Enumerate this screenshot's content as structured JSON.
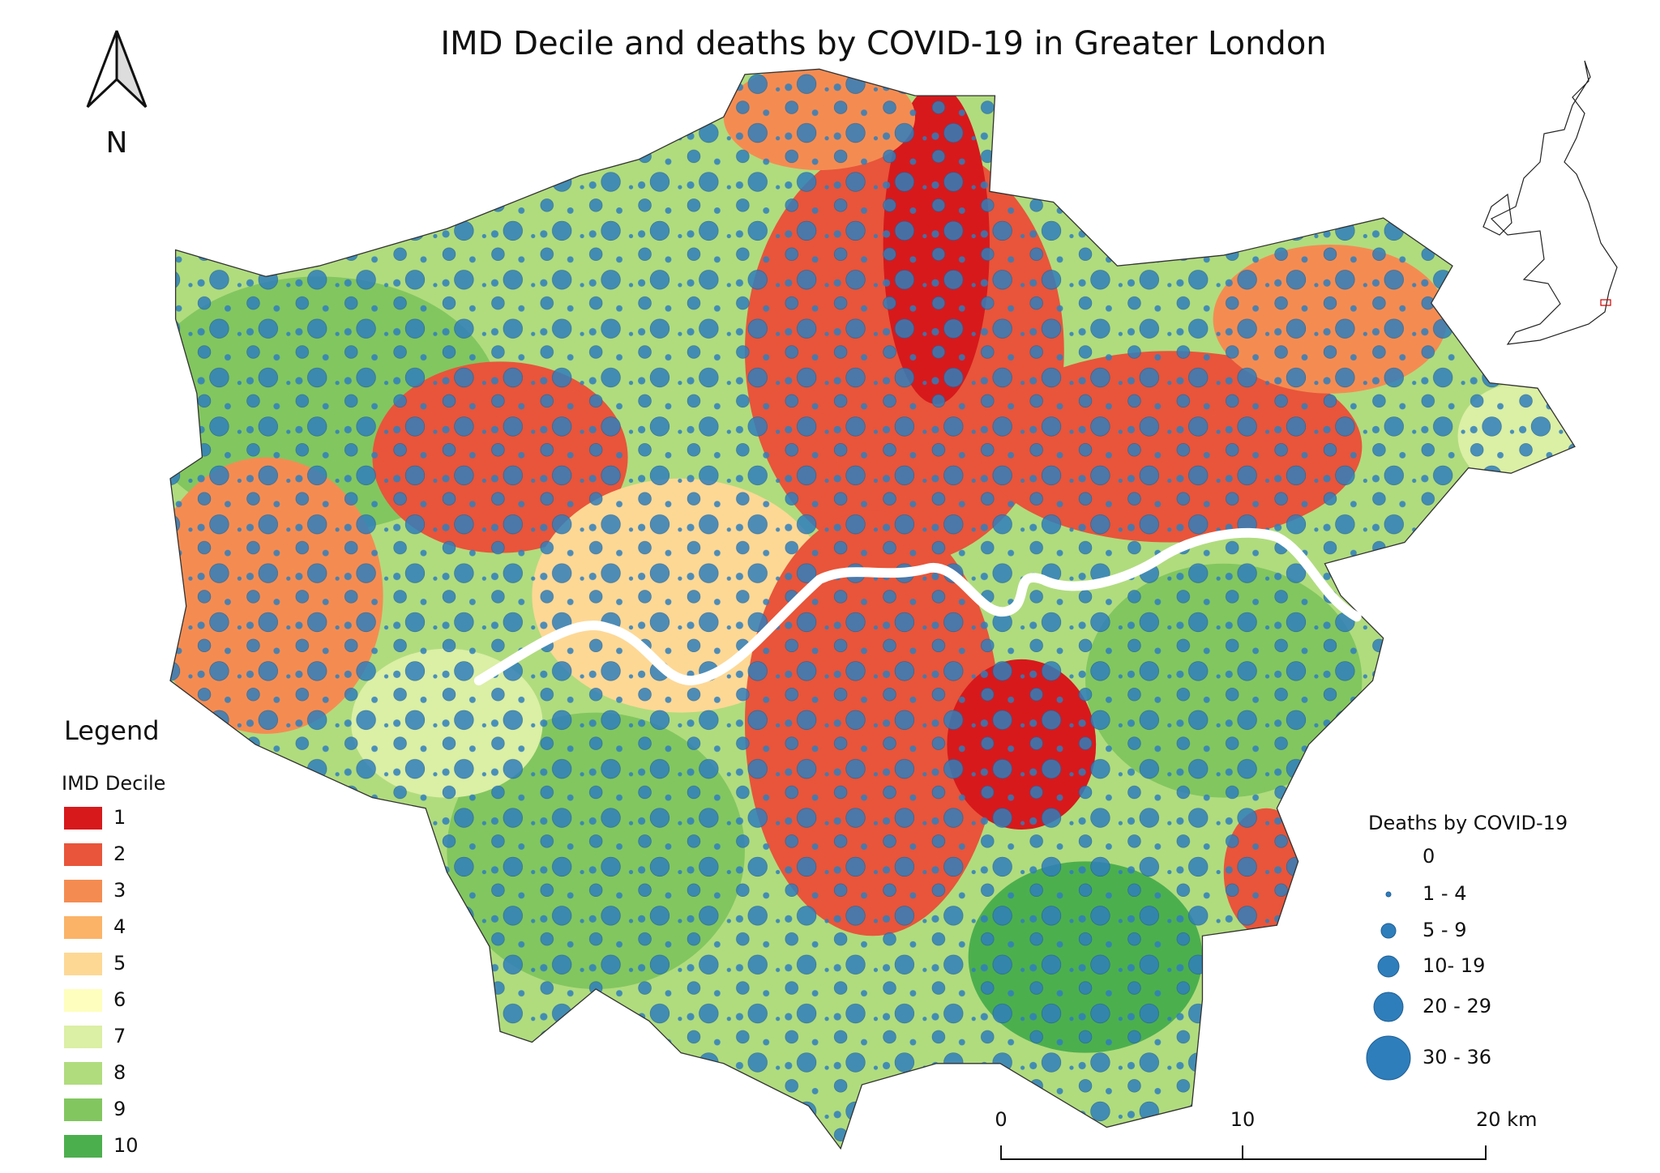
{
  "title": "IMD Decile and deaths by COVID-19 in Greater London",
  "north_label": "N",
  "legend": {
    "title": "Legend",
    "imd": {
      "title": "IMD Decile",
      "items": [
        {
          "label": "1",
          "color": "#d7191c"
        },
        {
          "label": "2",
          "color": "#e8553a"
        },
        {
          "label": "3",
          "color": "#f48c52"
        },
        {
          "label": "4",
          "color": "#fbb368"
        },
        {
          "label": "5",
          "color": "#fdd895"
        },
        {
          "label": "6",
          "color": "#fefebe"
        },
        {
          "label": "7",
          "color": "#dbefa5"
        },
        {
          "label": "8",
          "color": "#b0dc7e"
        },
        {
          "label": "9",
          "color": "#82c660"
        },
        {
          "label": "10",
          "color": "#4caf4e"
        }
      ]
    },
    "deaths": {
      "title": "Deaths by COVID-19",
      "color": "#2f7ebc",
      "items": [
        {
          "label": "0"
        },
        {
          "label": "1 - 4"
        },
        {
          "label": "5 - 9"
        },
        {
          "label": "10- 19"
        },
        {
          "label": "20 - 29"
        },
        {
          "label": "30 - 36"
        }
      ]
    }
  },
  "scale_bar": {
    "labels": [
      "0",
      "10",
      "20 km"
    ]
  }
}
